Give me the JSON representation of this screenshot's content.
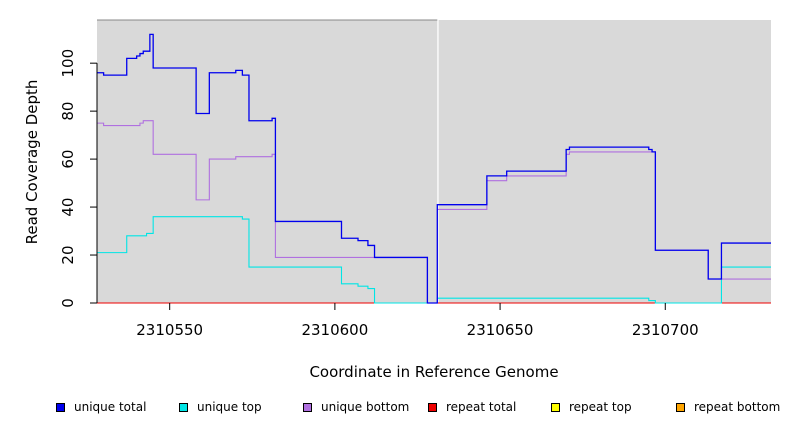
{
  "chart_data": {
    "type": "line",
    "title": "",
    "xlabel": "Coordinate in Reference Genome",
    "ylabel": "Read Coverage Depth",
    "xlim": [
      2310528,
      2310732
    ],
    "ylim": [
      0,
      118
    ],
    "x_ticks": [
      2310550,
      2310600,
      2310650,
      2310700
    ],
    "x_tick_labels": [
      "2310550",
      "2310600",
      "2310650",
      "2310700"
    ],
    "y_ticks": [
      0,
      20,
      40,
      60,
      80,
      100
    ],
    "y_tick_labels": [
      "0",
      "20",
      "40",
      "60",
      "80",
      "100"
    ],
    "gap_region": [
      2310628,
      2310631
    ],
    "panel_color": "#d9d9d9",
    "legend_position": "bottom",
    "series": [
      {
        "name": "unique total",
        "color": "#0000ee",
        "steps": [
          [
            2310528,
            96
          ],
          [
            2310530,
            95
          ],
          [
            2310537,
            102
          ],
          [
            2310540,
            103
          ],
          [
            2310541,
            104
          ],
          [
            2310542,
            105
          ],
          [
            2310544,
            112
          ],
          [
            2310545,
            98
          ],
          [
            2310558,
            79
          ],
          [
            2310562,
            96
          ],
          [
            2310570,
            97
          ],
          [
            2310572,
            95
          ],
          [
            2310574,
            76
          ],
          [
            2310581,
            77
          ],
          [
            2310582,
            34
          ],
          [
            2310602,
            27
          ],
          [
            2310607,
            26
          ],
          [
            2310610,
            24
          ],
          [
            2310612,
            19
          ],
          [
            2310628,
            0
          ],
          [
            2310631,
            41
          ],
          [
            2310646,
            53
          ],
          [
            2310652,
            55
          ],
          [
            2310670,
            64
          ],
          [
            2310671,
            65
          ],
          [
            2310695,
            64
          ],
          [
            2310696,
            63
          ],
          [
            2310697,
            22
          ],
          [
            2310713,
            10
          ],
          [
            2310717,
            25
          ],
          [
            2310732,
            25
          ]
        ]
      },
      {
        "name": "unique top",
        "color": "#00e5e5",
        "steps": [
          [
            2310528,
            21
          ],
          [
            2310537,
            28
          ],
          [
            2310543,
            29
          ],
          [
            2310545,
            36
          ],
          [
            2310572,
            35
          ],
          [
            2310574,
            15
          ],
          [
            2310602,
            8
          ],
          [
            2310607,
            7
          ],
          [
            2310610,
            6
          ],
          [
            2310612,
            0
          ],
          [
            2310631,
            2
          ],
          [
            2310695,
            1
          ],
          [
            2310697,
            0
          ],
          [
            2310717,
            15
          ],
          [
            2310732,
            15
          ]
        ]
      },
      {
        "name": "unique bottom",
        "color": "#b070e0",
        "steps": [
          [
            2310528,
            75
          ],
          [
            2310530,
            74
          ],
          [
            2310541,
            75
          ],
          [
            2310542,
            76
          ],
          [
            2310545,
            62
          ],
          [
            2310558,
            43
          ],
          [
            2310562,
            60
          ],
          [
            2310570,
            61
          ],
          [
            2310581,
            62
          ],
          [
            2310582,
            19
          ],
          [
            2310628,
            0
          ],
          [
            2310631,
            39
          ],
          [
            2310646,
            51
          ],
          [
            2310652,
            53
          ],
          [
            2310670,
            62
          ],
          [
            2310671,
            63
          ],
          [
            2310695,
            63
          ],
          [
            2310697,
            22
          ],
          [
            2310713,
            10
          ],
          [
            2310732,
            10
          ]
        ]
      },
      {
        "name": "repeat total",
        "color": "#ee0000",
        "steps": [
          [
            2310528,
            0
          ],
          [
            2310732,
            0
          ]
        ]
      },
      {
        "name": "repeat top",
        "color": "#ffff00",
        "steps": [
          [
            2310528,
            0
          ],
          [
            2310732,
            0
          ]
        ]
      },
      {
        "name": "repeat bottom",
        "color": "#ffa500",
        "steps": [
          [
            2310528,
            0
          ],
          [
            2310732,
            0
          ]
        ]
      }
    ]
  }
}
